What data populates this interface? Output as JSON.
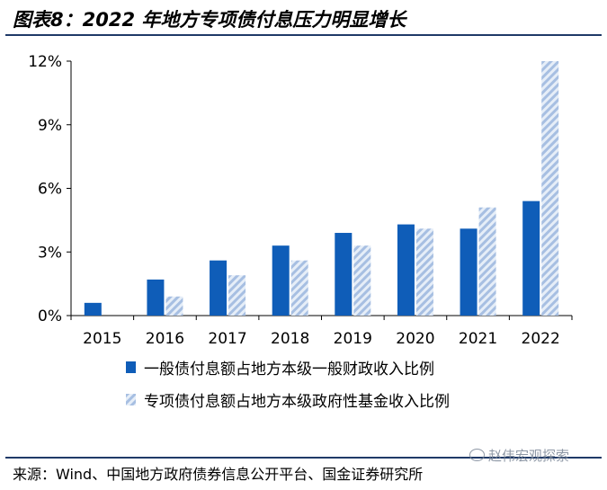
{
  "figure": {
    "title": "图表8：2022 年地方专项债付息压力明显增长",
    "source": "来源：Wind、中国地方政府债券信息公开平台、国金证券研究所",
    "watermark": "赵伟宏观探索"
  },
  "colors": {
    "series1": "#0f5db8",
    "series2_stripe": "#a7bfe2",
    "series2_fill": "#e6eef8",
    "rule": "#1f3a68"
  },
  "chart_data": {
    "type": "bar",
    "categories": [
      "2015",
      "2016",
      "2017",
      "2018",
      "2019",
      "2020",
      "2021",
      "2022"
    ],
    "series": [
      {
        "name": "一般债付息额占地方本级一般财政收入比例",
        "values": [
          0.6,
          1.7,
          2.6,
          3.3,
          3.9,
          4.3,
          4.1,
          5.4
        ]
      },
      {
        "name": "专项债付息额占地方本级政府性基金收入比例",
        "values": [
          null,
          0.9,
          1.9,
          2.6,
          3.3,
          4.1,
          5.1,
          12.0
        ]
      }
    ],
    "ylim": [
      0,
      12
    ],
    "yticks": [
      "0%",
      "3%",
      "6%",
      "9%",
      "12%"
    ],
    "xlabel": "",
    "ylabel": "",
    "legend_position": "bottom",
    "grid": false
  }
}
